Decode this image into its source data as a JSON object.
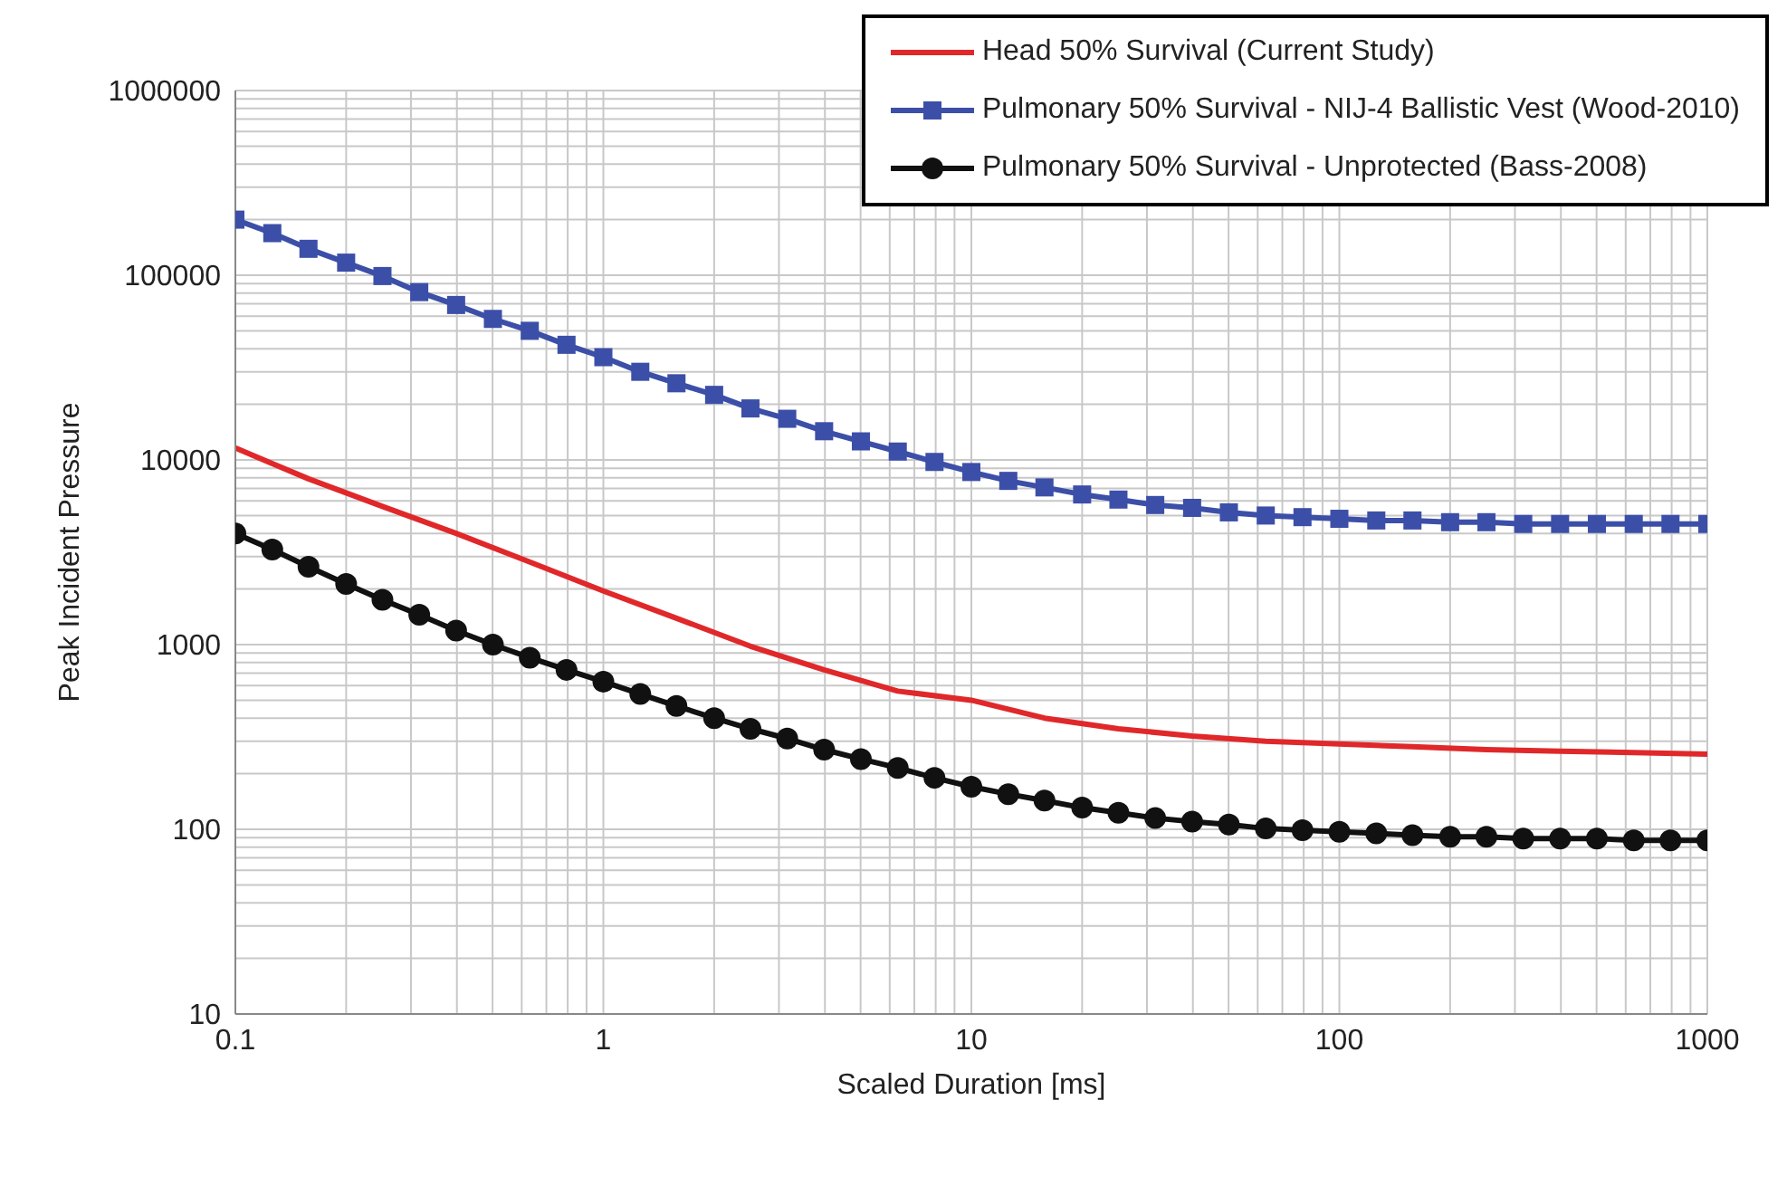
{
  "chart_data": {
    "type": "line",
    "xlabel": "Scaled Duration [ms]",
    "ylabel": "Peak Incident Pressure",
    "log": "xy",
    "xlim": [
      0.1,
      1000
    ],
    "xticks": [
      0.1,
      1,
      10,
      100,
      1000
    ],
    "ylim": [
      10,
      1000000
    ],
    "yticks": [
      10,
      100,
      1000,
      10000,
      100000,
      1000000
    ],
    "grid": true,
    "legend": "top right",
    "series": [
      {
        "name": "Head 50% Survival (Current Study)",
        "color": "#e0282a",
        "marker": "none",
        "x": [
          0.1,
          0.158,
          0.251,
          0.398,
          0.631,
          1,
          1.58,
          2.51,
          3.98,
          6.31,
          10,
          15.8,
          25.1,
          39.8,
          63.1,
          100,
          158,
          251,
          398,
          631,
          1000
        ],
        "values": [
          11600,
          7900,
          5600,
          4000,
          2800,
          1950,
          1390,
          980,
          730,
          560,
          500,
          400,
          350,
          320,
          300,
          290,
          280,
          270,
          265,
          260,
          255
        ]
      },
      {
        "name": "Pulmonary 50% Survival - NIJ-4 Ballistic Vest (Wood-2010)",
        "color": "#3c4fa8",
        "marker": "square",
        "x": [
          0.1,
          0.126,
          0.158,
          0.2,
          0.251,
          0.316,
          0.398,
          0.501,
          0.631,
          0.794,
          1,
          1.26,
          1.58,
          2,
          2.51,
          3.16,
          3.98,
          5.01,
          6.31,
          7.94,
          10,
          12.6,
          15.8,
          20,
          25.1,
          31.6,
          39.8,
          50.1,
          63.1,
          79.4,
          100,
          126,
          158,
          200,
          251,
          316,
          398,
          501,
          631,
          794,
          1000
        ],
        "values": [
          200000,
          169000,
          139000,
          117000,
          99000,
          81000,
          69000,
          58000,
          50000,
          42000,
          36000,
          30000,
          26000,
          22500,
          19000,
          16700,
          14300,
          12600,
          11100,
          9750,
          8600,
          7700,
          7100,
          6500,
          6100,
          5700,
          5500,
          5200,
          5000,
          4900,
          4800,
          4700,
          4700,
          4600,
          4600,
          4500,
          4500,
          4500,
          4500,
          4500,
          4500
        ]
      },
      {
        "name": "Pulmonary 50% Survival - Unprotected (Bass-2008)",
        "color": "#111111",
        "marker": "circle",
        "x": [
          0.1,
          0.126,
          0.158,
          0.2,
          0.251,
          0.316,
          0.398,
          0.501,
          0.631,
          0.794,
          1,
          1.26,
          1.58,
          2,
          2.51,
          3.16,
          3.98,
          5.01,
          6.31,
          7.94,
          10,
          12.6,
          15.8,
          20,
          25.1,
          31.6,
          39.8,
          50.1,
          63.1,
          79.4,
          100,
          126,
          158,
          200,
          251,
          316,
          398,
          501,
          631,
          794,
          1000
        ],
        "values": [
          4000,
          3270,
          2640,
          2130,
          1750,
          1450,
          1190,
          1000,
          850,
          730,
          630,
          540,
          465,
          400,
          350,
          310,
          270,
          240,
          215,
          190,
          170,
          155,
          143,
          131,
          123,
          115,
          110,
          106,
          101,
          99,
          97,
          95,
          93,
          91,
          91,
          89,
          89,
          89,
          87,
          87,
          87
        ]
      }
    ]
  }
}
